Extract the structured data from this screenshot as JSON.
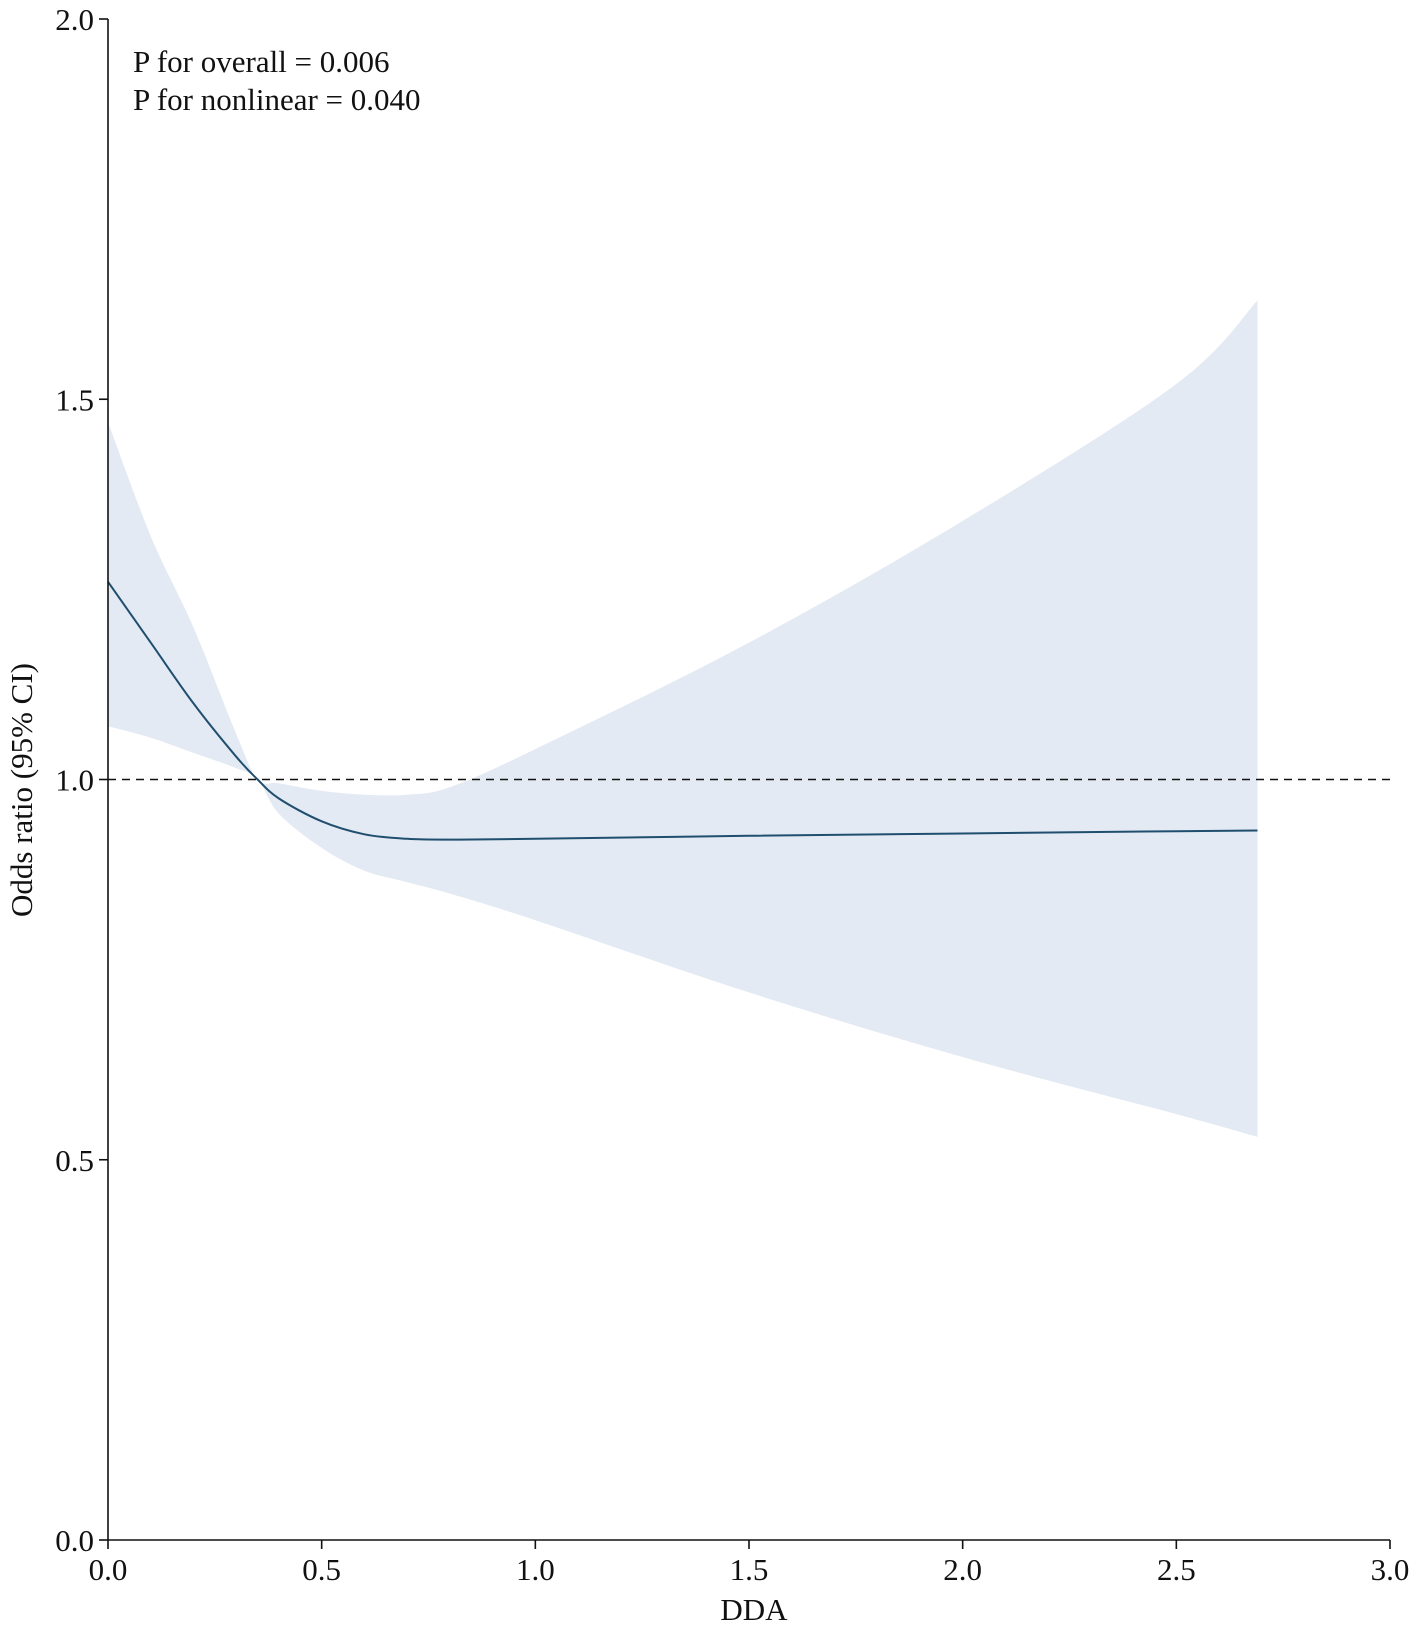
{
  "chart_data": {
    "type": "line",
    "title": "",
    "xlabel": "DDA",
    "ylabel": "Odds ratio (95% CI)",
    "xlim": [
      0.0,
      3.0
    ],
    "ylim": [
      0.0,
      2.0
    ],
    "x_ticks": [
      "0.0",
      "0.5",
      "1.0",
      "1.5",
      "2.0",
      "2.5",
      "3.0"
    ],
    "y_ticks": [
      "0.0",
      "0.5",
      "1.0",
      "1.5",
      "2.0"
    ],
    "grid": false,
    "reference_line": {
      "y": 1.0,
      "style": "dashed"
    },
    "annotations": [
      "P for overall = 0.006",
      "P for nonlinear = 0.040"
    ],
    "colors": {
      "line": "#1f4e6e",
      "band": "#e4eaf3",
      "axis": "#111111"
    },
    "series": [
      {
        "x": [
          0.0,
          0.1,
          0.2,
          0.3,
          0.35,
          0.4,
          0.5,
          0.6,
          0.7,
          0.8,
          1.0,
          1.5,
          2.0,
          2.5,
          2.69
        ],
        "y": [
          1.26,
          1.18,
          1.1,
          1.03,
          1.0,
          0.975,
          0.945,
          0.928,
          0.922,
          0.921,
          0.922,
          0.926,
          0.929,
          0.932,
          0.933
        ],
        "lower": [
          1.07,
          1.055,
          1.035,
          1.015,
          1.0,
          0.955,
          0.91,
          0.88,
          0.865,
          0.85,
          0.815,
          0.72,
          0.635,
          0.56,
          0.53
        ],
        "upper": [
          1.47,
          1.32,
          1.2,
          1.06,
          1.0,
          0.995,
          0.985,
          0.98,
          0.98,
          0.99,
          1.04,
          1.18,
          1.34,
          1.52,
          1.63
        ]
      }
    ]
  }
}
